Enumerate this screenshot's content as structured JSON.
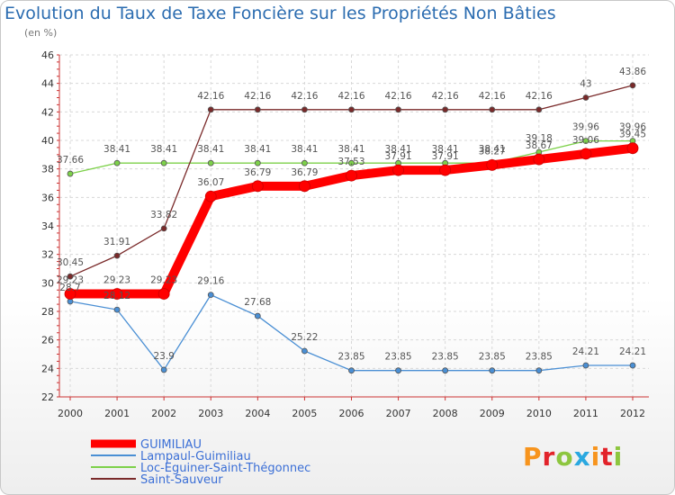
{
  "title": "Evolution du Taux de Taxe Foncière sur les Propriétés Non Bâties",
  "unit_label": "(en %)",
  "logo": {
    "text": "Proxiti",
    "colors": [
      "#f7941d",
      "#e2232a",
      "#8dc63f",
      "#2aa8e0",
      "#f7941d",
      "#e2232a",
      "#8dc63f"
    ]
  },
  "chart_data": {
    "type": "line",
    "x": [
      "2000",
      "2001",
      "2002",
      "2003",
      "2004",
      "2005",
      "2006",
      "2007",
      "2008",
      "2009",
      "2010",
      "2011",
      "2012"
    ],
    "ylim": [
      22,
      46
    ],
    "yticks": [
      22,
      24,
      26,
      28,
      30,
      32,
      34,
      36,
      38,
      40,
      42,
      44,
      46
    ],
    "grid": true,
    "legend_position": "bottom-left",
    "series": [
      {
        "name": "GUIMILIAU",
        "color": "#ff0000",
        "values": [
          29.23,
          29.23,
          29.23,
          36.07,
          36.79,
          36.79,
          37.53,
          37.91,
          37.91,
          38.27,
          38.67,
          39.06,
          39.45
        ],
        "labels": [
          "29.23",
          "29.23",
          "29.23",
          "36.07",
          "36.79",
          "36.79",
          "37.53",
          "37.91",
          "37.91",
          "38.27",
          "38.67",
          "39.06",
          "39.45"
        ]
      },
      {
        "name": "Lampaul-Guimiliau",
        "color": "#4a8fd4",
        "values": [
          28.7,
          28.12,
          23.9,
          29.16,
          27.68,
          25.22,
          23.85,
          23.85,
          23.85,
          23.85,
          23.85,
          24.21,
          24.21
        ],
        "labels": [
          "28.7",
          "28.12",
          "23.9",
          "29.16",
          "27.68",
          "25.22",
          "23.85",
          "23.85",
          "23.85",
          "23.85",
          "23.85",
          "24.21",
          "24.21"
        ]
      },
      {
        "name": "Loc-Eguiner-Saint-Thégonnec",
        "color": "#7dd14a",
        "values": [
          37.66,
          38.41,
          38.41,
          38.41,
          38.41,
          38.41,
          38.41,
          38.41,
          38.41,
          38.41,
          39.18,
          39.96,
          39.96
        ],
        "labels": [
          "37.66",
          "38.41",
          "38.41",
          "38.41",
          "38.41",
          "38.41",
          "38.41",
          "38.41",
          "38.41",
          "38.41",
          "39.18",
          "39.96",
          "39.96"
        ]
      },
      {
        "name": "Saint-Sauveur",
        "color": "#7a2a2a",
        "values": [
          30.45,
          31.91,
          33.82,
          42.16,
          42.16,
          42.16,
          42.16,
          42.16,
          42.16,
          42.16,
          42.16,
          43,
          43.86
        ],
        "labels": [
          "30.45",
          "31.91",
          "33.82",
          "42.16",
          "42.16",
          "42.16",
          "42.16",
          "42.16",
          "42.16",
          "42.16",
          "42.16",
          "43",
          "43.86"
        ]
      }
    ]
  }
}
